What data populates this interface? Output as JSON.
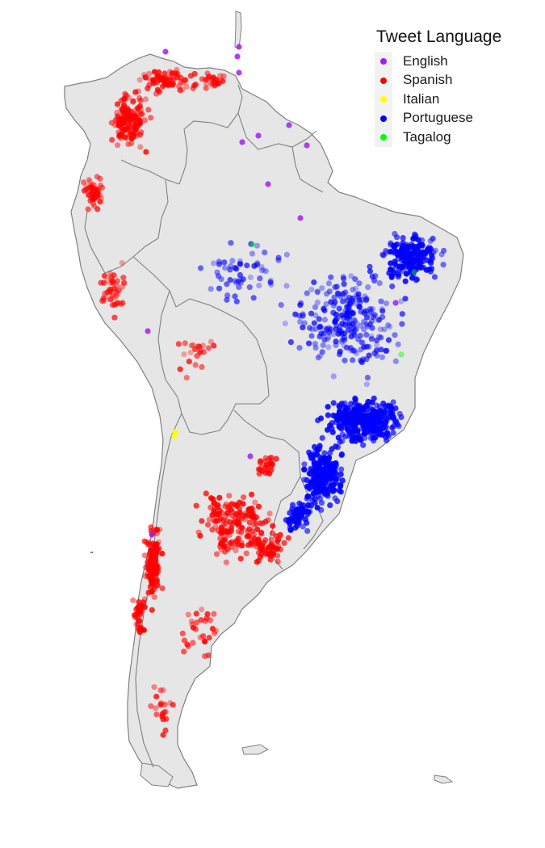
{
  "map": {
    "region": "South America",
    "land_color": "#e6e6e6",
    "border_color": "#808080"
  },
  "legend": {
    "title": "Tweet Language",
    "items": [
      {
        "label": "English",
        "color": "#a020f0"
      },
      {
        "label": "Spanish",
        "color": "#ff0000"
      },
      {
        "label": "Italian",
        "color": "#ffff00"
      },
      {
        "label": "Portuguese",
        "color": "#0000ff"
      },
      {
        "label": "Tagalog",
        "color": "#00ff00"
      }
    ]
  }
}
